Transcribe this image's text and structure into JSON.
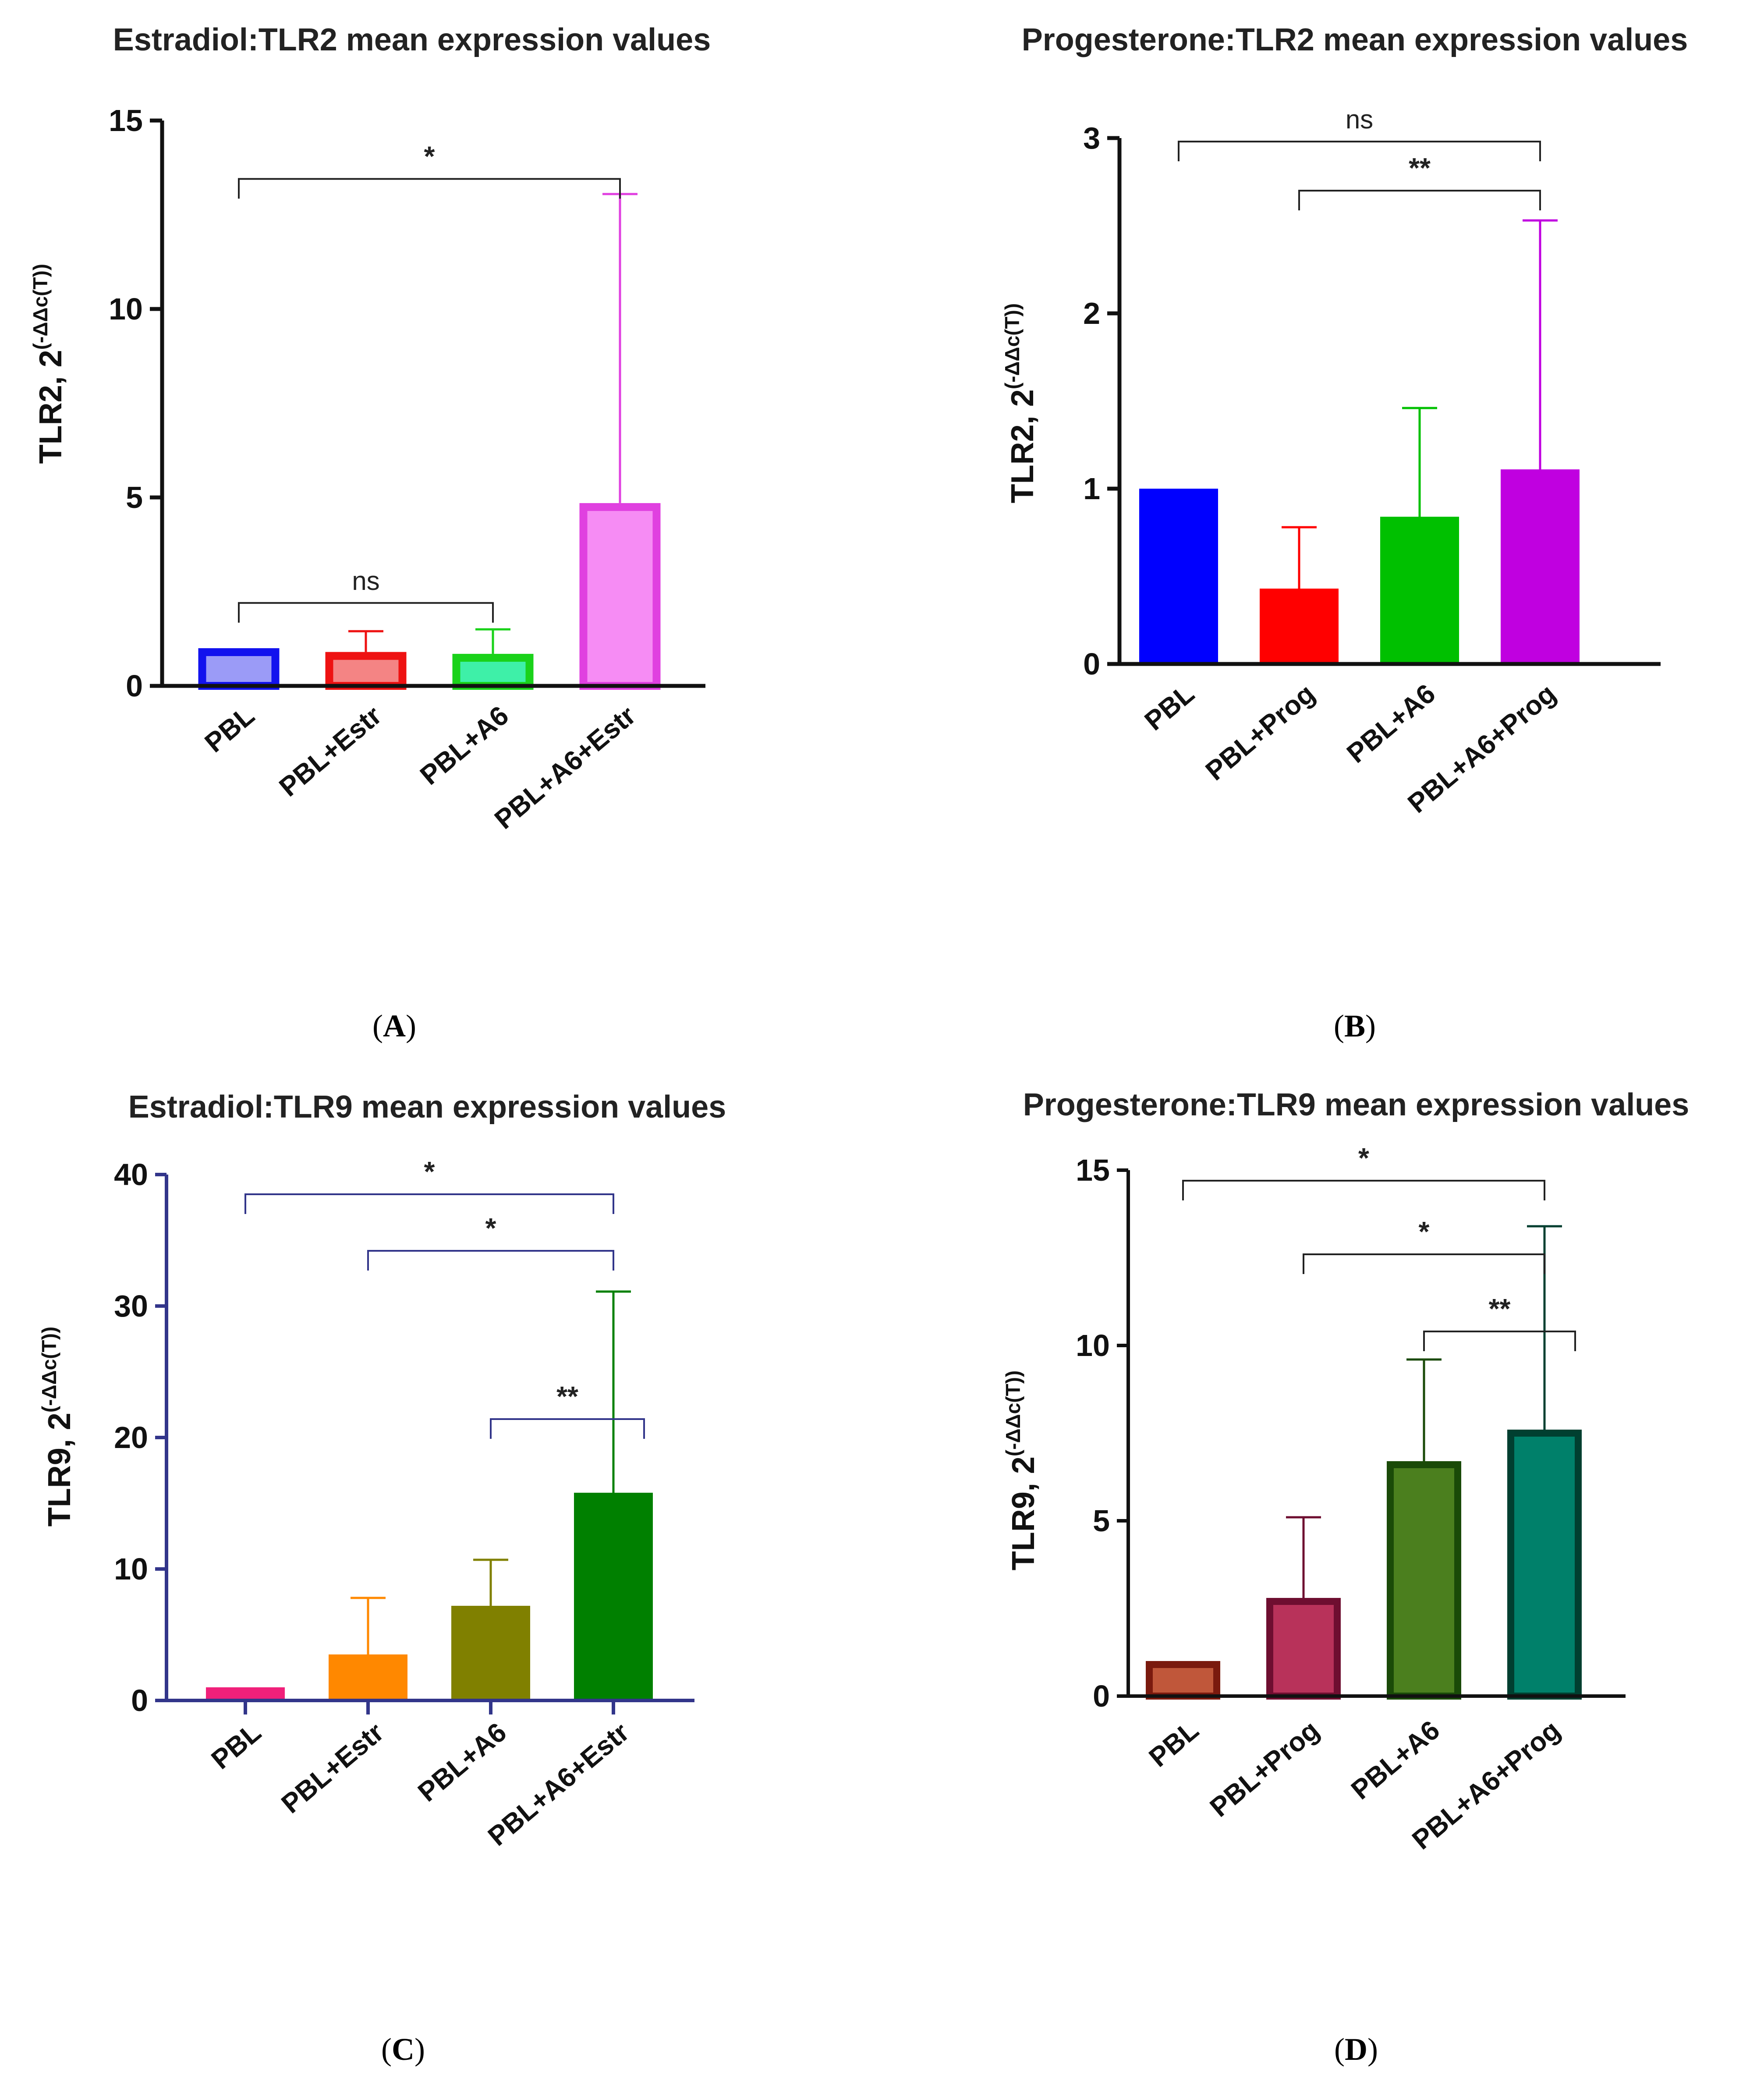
{
  "figure": {
    "panel_labels": [
      "A",
      "B",
      "C",
      "D"
    ]
  },
  "chart_data": [
    {
      "type": "bar",
      "panel": "A",
      "title": "Estradiol:TLR2 mean expression values",
      "ylabel": {
        "main": "TLR2, 2",
        "sup": "(-ΔΔc(T))"
      },
      "categories": [
        "PBL",
        "PBL+Estr",
        "PBL+A6",
        "PBL+A6+Estr"
      ],
      "values": [
        1,
        0.9,
        0.85,
        4.85
      ],
      "errors": [
        0,
        1.45,
        1.5,
        13.05
      ],
      "ylim": [
        0,
        15
      ],
      "yticks": [
        0,
        5,
        10,
        15
      ],
      "colors": {
        "fill": [
          "#9b9bf7",
          "#f48484",
          "#3ef0a8",
          "#f68cf4"
        ],
        "stroke": [
          "#1212ee",
          "#ee1212",
          "#1ad21a",
          "#e040e0"
        ],
        "axis": "#111111",
        "bracket": "#222222"
      },
      "significance": [
        {
          "from": 0,
          "to": 3,
          "label": "*",
          "y": 13.45
        },
        {
          "from": 0,
          "to": 2,
          "label": "ns",
          "y": 2.2
        }
      ]
    },
    {
      "type": "bar",
      "panel": "B",
      "title": "Progesterone:TLR2 mean expression values",
      "ylabel": {
        "main": "TLR2, 2",
        "sup": "(-ΔΔc(T))"
      },
      "categories": [
        "PBL",
        "PBL+Prog",
        "PBL+A6",
        "PBL+A6+Prog"
      ],
      "values": [
        1,
        0.43,
        0.84,
        1.11
      ],
      "errors": [
        0,
        0.78,
        1.46,
        2.53
      ],
      "ylim": [
        0,
        3
      ],
      "yticks": [
        0,
        1,
        2,
        3
      ],
      "colors": {
        "fill": [
          "#0000ff",
          "#ff0000",
          "#00c000",
          "#c000e0"
        ],
        "stroke": [
          "#0000ff",
          "#ff0000",
          "#00c000",
          "#c000e0"
        ],
        "axis": "#111111",
        "bracket": "#222222"
      },
      "significance": [
        {
          "from": 0,
          "to": 3,
          "label": "ns",
          "y": 2.98
        },
        {
          "from": 1,
          "to": 3,
          "label": "**",
          "y": 2.7
        }
      ]
    },
    {
      "type": "bar",
      "panel": "C",
      "title": "Estradiol:TLR9 mean expression values",
      "ylabel": {
        "main": "TLR9, 2",
        "sup": "(-ΔΔc(T))"
      },
      "categories": [
        "PBL",
        "PBL+Estr",
        "PBL+A6",
        "PBL+A6+Estr"
      ],
      "values": [
        1,
        3.5,
        7.2,
        15.8
      ],
      "errors": [
        0,
        7.8,
        10.7,
        31.1
      ],
      "ylim": [
        0,
        40
      ],
      "yticks": [
        0,
        10,
        20,
        30,
        40
      ],
      "colors": {
        "fill": [
          "#f0207a",
          "#ff8800",
          "#808000",
          "#008000"
        ],
        "stroke": [
          "#f0207a",
          "#ff8800",
          "#808000",
          "#008000"
        ],
        "axis": "#32358a",
        "bracket": "#32358a"
      },
      "significance": [
        {
          "from": 0,
          "to": 3,
          "label": "*",
          "y": 38.5
        },
        {
          "from": 1,
          "to": 3,
          "label": "*",
          "y": 34.2
        },
        {
          "from": 2,
          "to": 3,
          "label": "**",
          "y": 21.4
        }
      ]
    },
    {
      "type": "bar",
      "panel": "D",
      "title": "Progesterone:TLR9 mean expression values",
      "ylabel": {
        "main": "TLR9, 2",
        "sup": "(-ΔΔc(T))"
      },
      "categories": [
        "PBL",
        "PBL+Prog",
        "PBL+A6",
        "PBL+A6+Prog"
      ],
      "values": [
        1,
        2.8,
        6.7,
        7.6
      ],
      "errors": [
        0,
        5.1,
        9.6,
        13.4
      ],
      "ylim": [
        0,
        15
      ],
      "yticks": [
        0,
        5,
        10,
        15
      ],
      "colors": {
        "fill": [
          "#c0573a",
          "#b8325a",
          "#4b7f1e",
          "#00806a"
        ],
        "stroke": [
          "#7a1a0e",
          "#6e0e30",
          "#1a4a08",
          "#003f30"
        ],
        "axis": "#111111",
        "bracket": "#222222"
      },
      "significance": [
        {
          "from": 0,
          "to": 3,
          "label": "*",
          "y": 14.7
        },
        {
          "from": 1,
          "to": 3,
          "label": "*",
          "y": 12.6
        },
        {
          "from": 2,
          "to": 3,
          "label": "**",
          "y": 10.4
        }
      ]
    }
  ]
}
